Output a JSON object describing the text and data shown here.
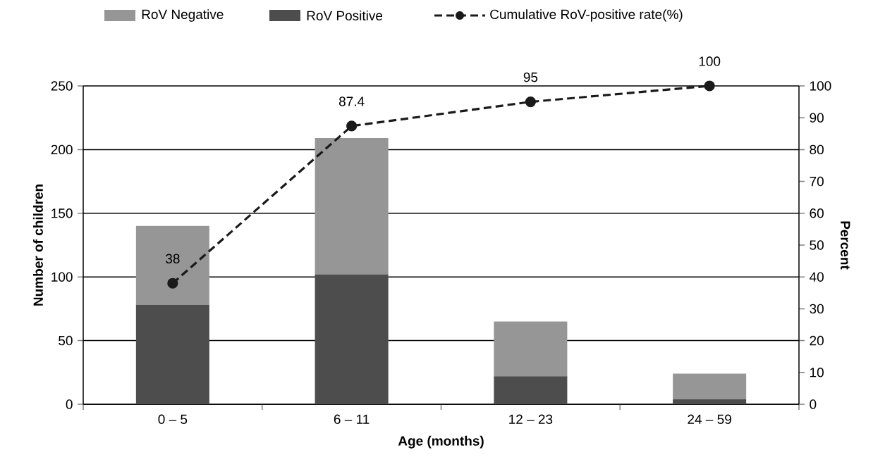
{
  "chart_data": {
    "type": "bar",
    "stacked": true,
    "xlabel": "Age (months)",
    "ylabel": "Number of children",
    "y2label": "Percent",
    "categories": [
      "0 – 5",
      "6 – 11",
      "12 – 23",
      "24 – 59"
    ],
    "series": [
      {
        "name": "RoV Positive",
        "color": "#4d4d4d",
        "values": [
          78,
          102,
          22,
          4
        ]
      },
      {
        "name": "RoV Negative",
        "color": "#969696",
        "values": [
          62,
          107,
          43,
          20
        ]
      },
      {
        "name": "Cumulative RoV-positive  rate(%)",
        "type": "line",
        "axis": "y2",
        "color": "#1a1a1a",
        "values": [
          38,
          87.4,
          95,
          100
        ],
        "value_labels": [
          "38",
          "87.4",
          "95",
          "100"
        ]
      }
    ],
    "ylim": [
      0,
      250
    ],
    "yticks": [
      0,
      50,
      100,
      150,
      200,
      250
    ],
    "y2lim": [
      0,
      100
    ],
    "y2ticks": [
      0,
      10,
      20,
      30,
      40,
      50,
      60,
      70,
      80,
      90,
      100
    ],
    "grid": "y",
    "legend": "top",
    "marker": "circle",
    "line_style": "dashed"
  }
}
